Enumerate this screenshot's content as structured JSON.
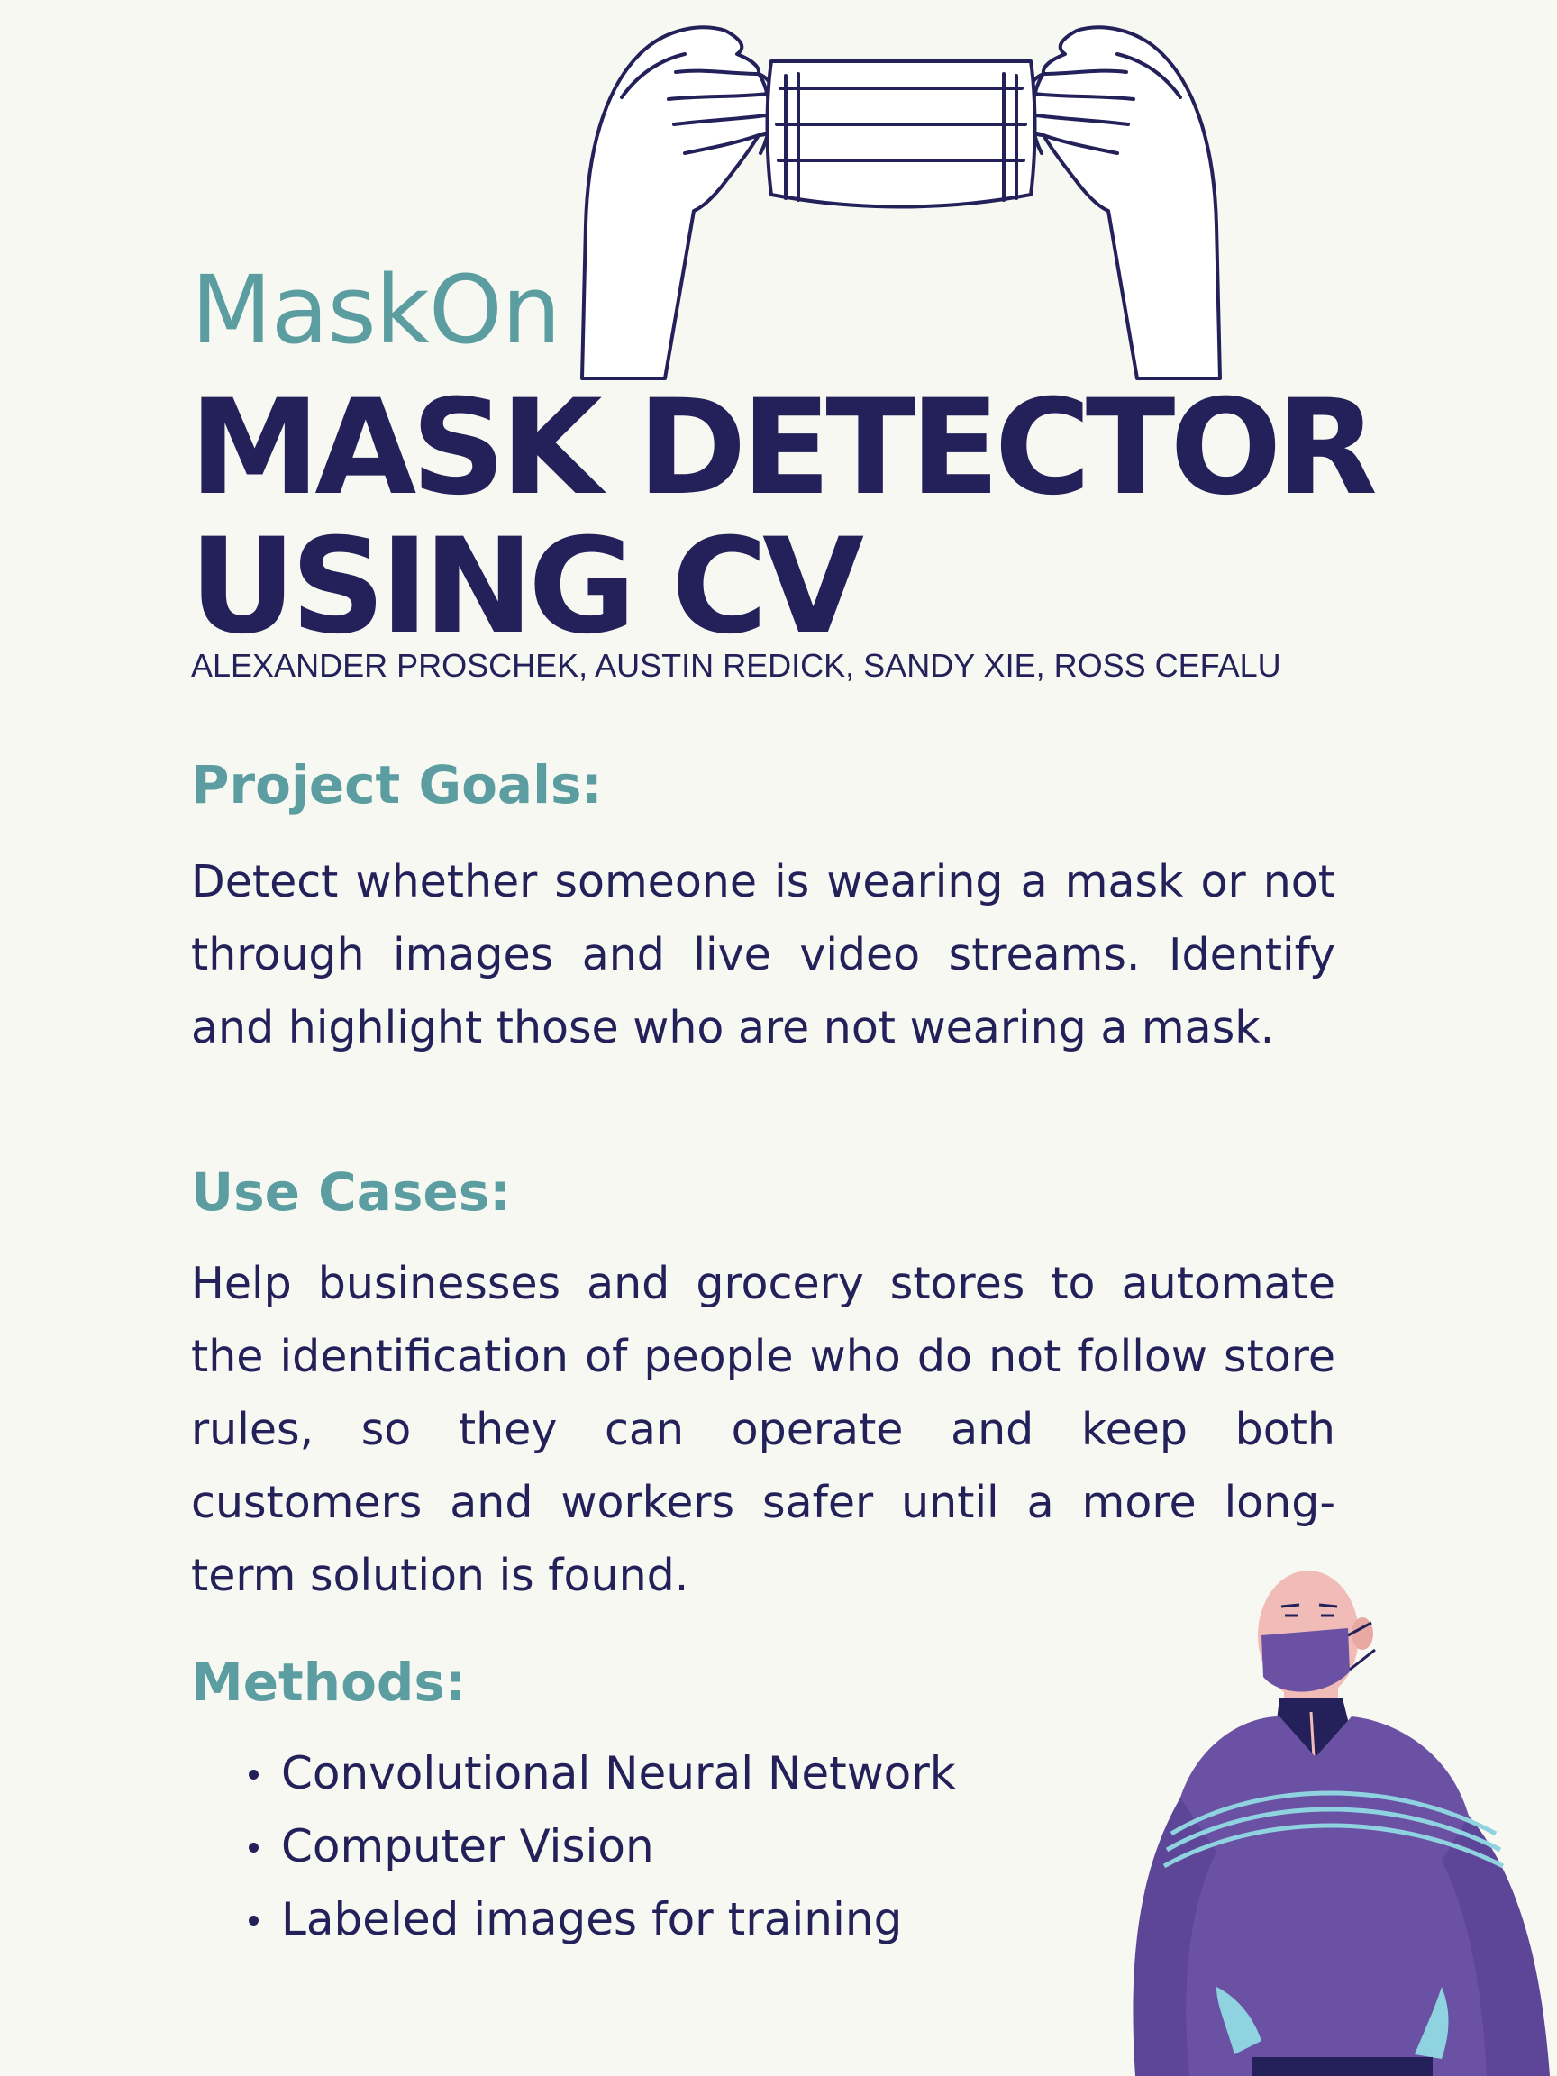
{
  "subtitle": "MaskOn",
  "title_line1": "MASK DETECTOR",
  "title_line2": "USING CV",
  "authors": "ALEXANDER PROSCHEK, AUSTIN REDICK, SANDY XIE, ROSS CEFALU",
  "sections": {
    "goals": {
      "heading": "Project Goals:",
      "body": "Detect whether someone is wearing a mask or not through images and live video streams. Identify and highlight those who are not wearing a mask."
    },
    "use_cases": {
      "heading": "Use Cases:",
      "body": "Help businesses and grocery stores to automate the identification of people who do not follow store rules, so they can operate and keep both customers and workers safer until a more long-term solution is found."
    },
    "methods": {
      "heading": "Methods:",
      "items": [
        "Convolutional Neural Network",
        "Computer Vision",
        "Labeled images for training"
      ]
    }
  },
  "colors": {
    "background": "#f7f8f1",
    "navy": "#24215a",
    "teal": "#5b9da0",
    "purple": "#6a51a3",
    "skin": "#f1bcb7"
  },
  "illustrations": [
    "hands-holding-mask-icon",
    "man-wearing-mask-icon"
  ]
}
